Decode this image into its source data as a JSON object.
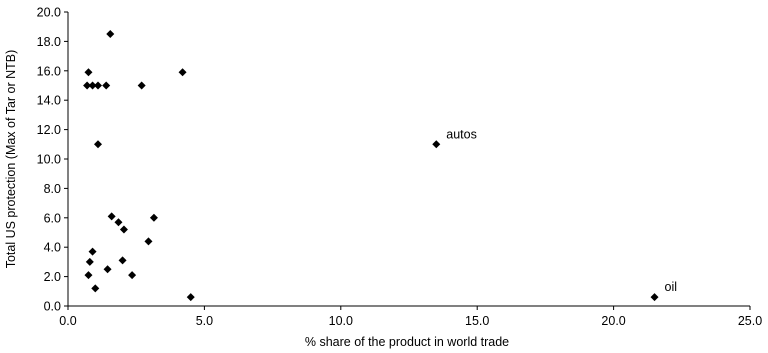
{
  "chart_data": {
    "type": "scatter",
    "xlabel": "% share of the product in world trade",
    "ylabel": "Total US protection (Max of Tar or NTB)",
    "xlim": [
      0,
      25
    ],
    "ylim": [
      0,
      20
    ],
    "x_ticks": [
      "0.0",
      "5.0",
      "10.0",
      "15.0",
      "20.0",
      "25.0"
    ],
    "y_ticks": [
      "0.0",
      "2.0",
      "4.0",
      "6.0",
      "8.0",
      "10.0",
      "12.0",
      "14.0",
      "16.0",
      "18.0",
      "20.0"
    ],
    "grid": false,
    "marker": "diamond",
    "marker_color": "#000000",
    "points": [
      {
        "x": 0.7,
        "y": 15.0
      },
      {
        "x": 0.9,
        "y": 15.0
      },
      {
        "x": 1.1,
        "y": 15.0
      },
      {
        "x": 1.4,
        "y": 15.0
      },
      {
        "x": 0.75,
        "y": 15.9
      },
      {
        "x": 1.55,
        "y": 18.5
      },
      {
        "x": 2.7,
        "y": 15.0
      },
      {
        "x": 4.2,
        "y": 15.9
      },
      {
        "x": 1.1,
        "y": 11.0
      },
      {
        "x": 1.6,
        "y": 6.1
      },
      {
        "x": 1.85,
        "y": 5.7
      },
      {
        "x": 2.05,
        "y": 5.2
      },
      {
        "x": 3.15,
        "y": 6.0
      },
      {
        "x": 2.95,
        "y": 4.4
      },
      {
        "x": 0.9,
        "y": 3.7
      },
      {
        "x": 0.8,
        "y": 3.0
      },
      {
        "x": 2.0,
        "y": 3.1
      },
      {
        "x": 0.75,
        "y": 2.1
      },
      {
        "x": 1.45,
        "y": 2.5
      },
      {
        "x": 2.35,
        "y": 2.1
      },
      {
        "x": 1.0,
        "y": 1.2
      },
      {
        "x": 4.5,
        "y": 0.6
      },
      {
        "x": 13.5,
        "y": 11.0
      },
      {
        "x": 21.5,
        "y": 0.6
      }
    ],
    "annotations": [
      {
        "text": "autos",
        "x": 13.5,
        "y": 11.0
      },
      {
        "text": "oil",
        "x": 21.5,
        "y": 0.6
      }
    ]
  }
}
